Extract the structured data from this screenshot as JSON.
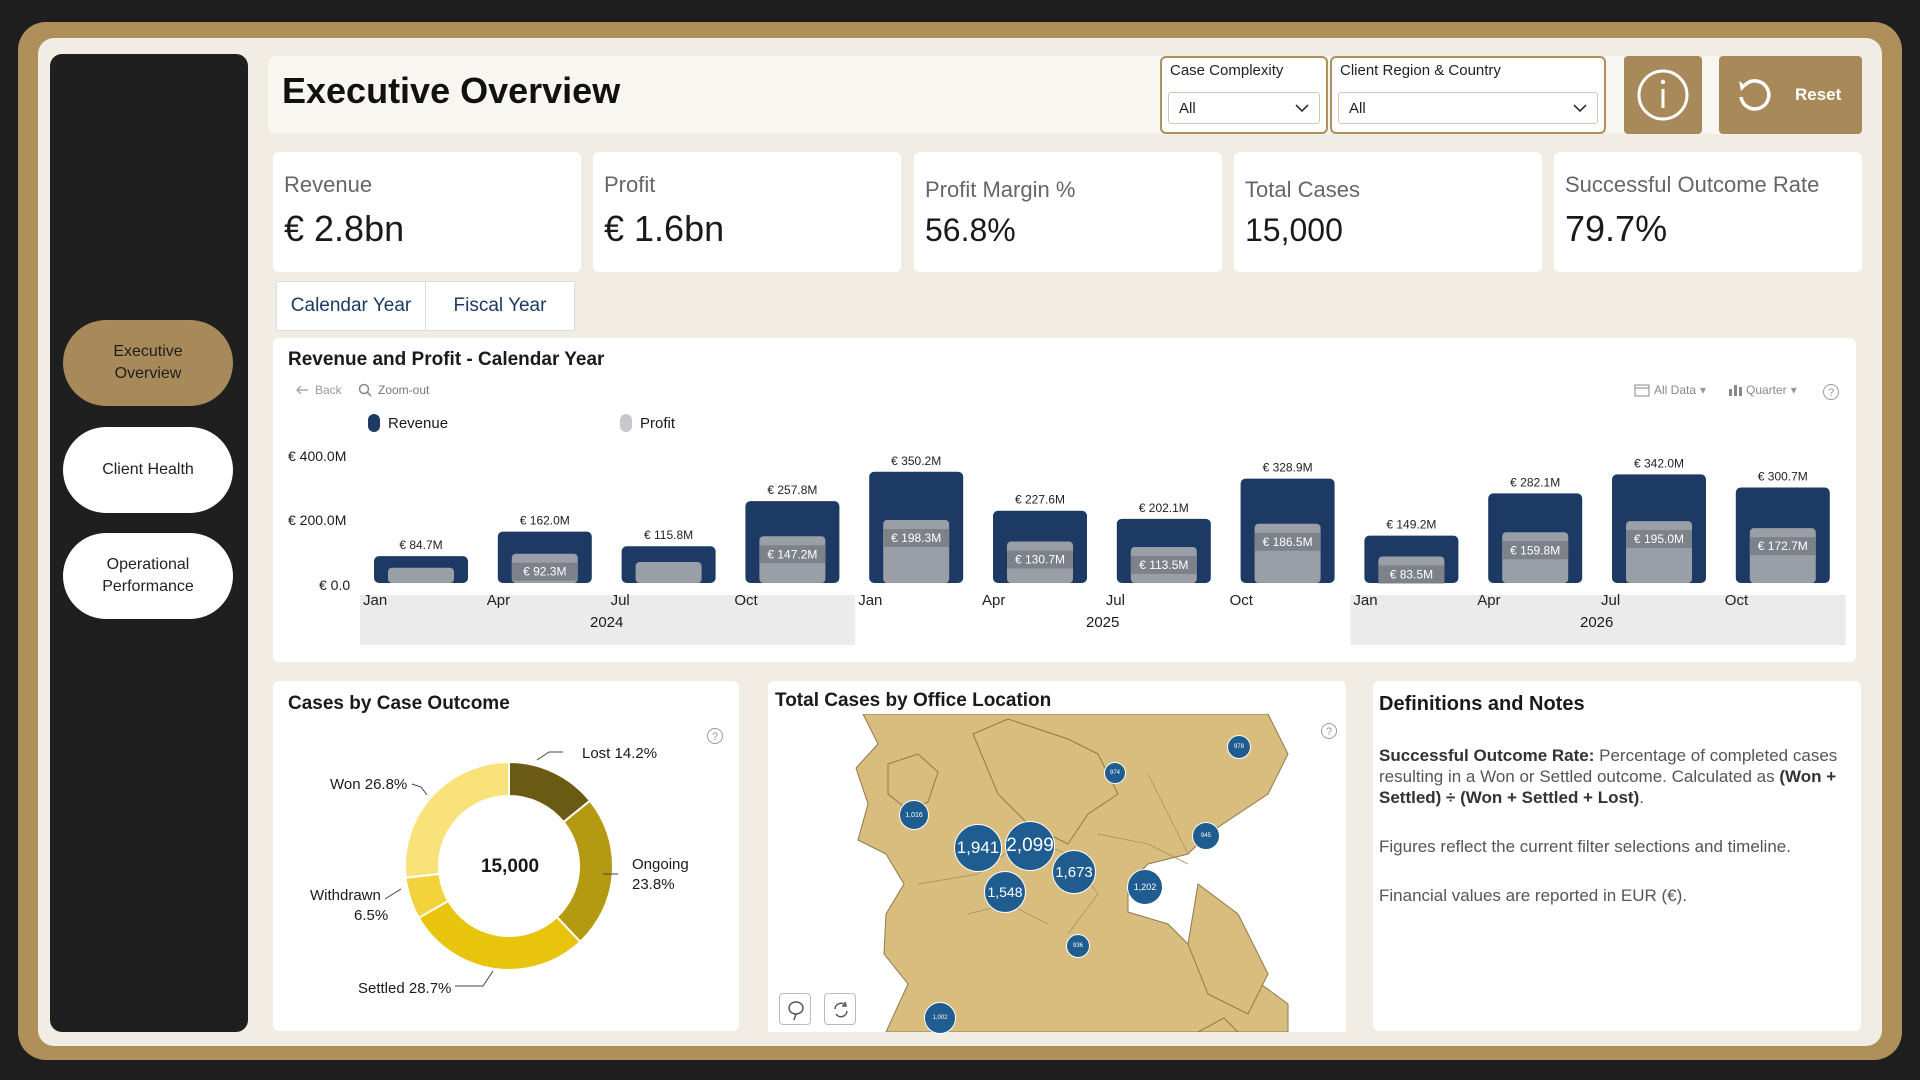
{
  "header": {
    "title": "Executive Overview",
    "filters": [
      {
        "label": "Case Complexity",
        "value": "All"
      },
      {
        "label": "Client Region & Country",
        "value": "All"
      }
    ],
    "reset_label": "Reset"
  },
  "nav": {
    "items": [
      {
        "label": "Executive Overview",
        "active": true
      },
      {
        "label": "Client Health",
        "active": false
      },
      {
        "label": "Operational Performance",
        "active": false
      }
    ]
  },
  "kpis": [
    {
      "label": "Revenue",
      "value": "€ 2.8bn"
    },
    {
      "label": "Profit",
      "value": "€ 1.6bn"
    },
    {
      "label": "Profit Margin %",
      "value": "56.8%"
    },
    {
      "label": "Total Cases",
      "value": "15,000"
    },
    {
      "label": "Successful Outcome Rate",
      "value": "79.7%"
    }
  ],
  "tabs": [
    {
      "label": "Calendar Year"
    },
    {
      "label": "Fiscal Year"
    }
  ],
  "revenue_chart": {
    "title": "Revenue and Profit - Calendar Year",
    "toolbar": {
      "back": "Back",
      "zoom_out": "Zoom-out",
      "all_data": "All Data",
      "quarter": "Quarter"
    },
    "legend": {
      "revenue": "Revenue",
      "profit": "Profit"
    },
    "y_ticks": [
      "€ 400.0M",
      "€ 200.0M",
      "€ 0.0"
    ],
    "years": [
      "2024",
      "2025",
      "2026"
    ]
  },
  "outcome_chart": {
    "title": "Cases by Case Outcome",
    "center_label": "15,000",
    "labels": {
      "lost": "Lost 14.2%",
      "won": "Won 26.8%",
      "ongoing": "Ongoing",
      "ongoing_pct": "23.8%",
      "withdrawn": "Withdrawn",
      "withdrawn_pct": "6.5%",
      "settled": "Settled 28.7%"
    }
  },
  "map": {
    "title": "Total Cases by Office Location",
    "bubbles": [
      "1,941",
      "2,099",
      "1,548",
      "1,673",
      "1,202",
      "1,016",
      "978",
      "974",
      "945",
      "936",
      "1,002"
    ]
  },
  "notes": {
    "title": "Definitions and Notes",
    "def_term": "Successful Outcome Rate:",
    "def_text": " Percentage of completed cases resulting in a Won or Settled outcome. Calculated as ",
    "def_formula": "(Won + Settled) ÷ (Won + Settled + Lost)",
    "def_end": ".",
    "note1": "Figures reflect the current filter selections and timeline.",
    "note2": "Financial values are reported in EUR (€)."
  },
  "chart_data": [
    {
      "type": "bar",
      "title": "Revenue and Profit - Calendar Year",
      "categories": [
        "Jan 2024",
        "Apr 2024",
        "Jul 2024",
        "Oct 2024",
        "Jan 2025",
        "Apr 2025",
        "Jul 2025",
        "Oct 2025",
        "Jan 2026",
        "Apr 2026",
        "Jul 2026",
        "Oct 2026"
      ],
      "category_labels": [
        "Jan",
        "Apr",
        "Jul",
        "Oct",
        "Jan",
        "Apr",
        "Jul",
        "Oct",
        "Jan",
        "Apr",
        "Jul",
        "Oct"
      ],
      "series": [
        {
          "name": "Revenue",
          "color": "#1d3a64",
          "values": [
            84.7,
            162.0,
            115.8,
            257.8,
            350.2,
            227.6,
            202.1,
            328.9,
            149.2,
            282.1,
            342.0,
            300.7
          ],
          "labels": [
            "€ 84.7M",
            "€ 162.0M",
            "€ 115.8M",
            "€ 257.8M",
            "€ 350.2M",
            "€ 227.6M",
            "€ 202.1M",
            "€ 328.9M",
            "€ 149.2M",
            "€ 282.1M",
            "€ 342.0M",
            "€ 300.7M"
          ]
        },
        {
          "name": "Profit",
          "color": "#9a9ea6",
          "values": [
            48.0,
            92.3,
            66.0,
            147.2,
            198.3,
            130.7,
            113.5,
            186.5,
            83.5,
            159.8,
            195.0,
            172.7
          ],
          "labels": [
            "",
            "€ 92.3M",
            "",
            "€ 147.2M",
            "€ 198.3M",
            "€ 130.7M",
            "€ 113.5M",
            "€ 186.5M",
            "€ 83.5M",
            "€ 159.8M",
            "€ 195.0M",
            "€ 172.7M"
          ]
        }
      ],
      "ylim": [
        0,
        400
      ],
      "ylabel": "",
      "xlabel": "",
      "grid": false,
      "legend": "top-left"
    },
    {
      "type": "pie",
      "title": "Cases by Case Outcome",
      "categories": [
        "Lost",
        "Ongoing",
        "Settled",
        "Withdrawn",
        "Won"
      ],
      "values": [
        14.2,
        23.8,
        28.7,
        6.5,
        26.8
      ],
      "colors": [
        "#6b5a14",
        "#b39a10",
        "#e8c40c",
        "#f3d23c",
        "#f9e27a"
      ],
      "total": 15000
    }
  ]
}
